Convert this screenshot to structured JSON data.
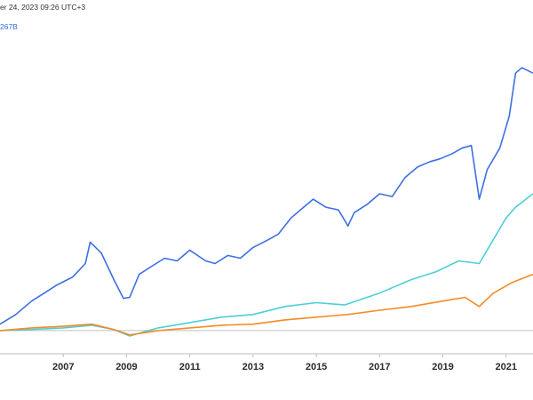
{
  "header": {
    "timestamp": "er 24, 2023 09:26 UTC+3",
    "code": "267B"
  },
  "colors": {
    "blue": "#3d6fe3",
    "cyan": "#4ccfd6",
    "orange": "#f58a25",
    "baseline": "#bfbfbf",
    "axis": "#bdbdbd",
    "tick_text": "#2b2b2b"
  },
  "chart_data": {
    "type": "line",
    "title": "",
    "xlabel": "",
    "ylabel": "",
    "x_ticks": [
      "2007",
      "2009",
      "2011",
      "2013",
      "2015",
      "2017",
      "2019",
      "2021"
    ],
    "xlim": [
      2005.0,
      2021.85
    ],
    "ylim": [
      -0.2,
      5.5
    ],
    "baseline": 0,
    "grid": false,
    "legend": "none",
    "series": [
      {
        "color_key": "blue",
        "points": [
          [
            2005.0,
            0.12
          ],
          [
            2005.5,
            0.3
          ],
          [
            2006.0,
            0.55
          ],
          [
            2006.4,
            0.7
          ],
          [
            2006.8,
            0.85
          ],
          [
            2007.3,
            1.0
          ],
          [
            2007.7,
            1.25
          ],
          [
            2007.85,
            1.65
          ],
          [
            2008.2,
            1.45
          ],
          [
            2008.6,
            0.95
          ],
          [
            2008.9,
            0.6
          ],
          [
            2009.1,
            0.62
          ],
          [
            2009.4,
            1.05
          ],
          [
            2009.8,
            1.2
          ],
          [
            2010.2,
            1.35
          ],
          [
            2010.6,
            1.3
          ],
          [
            2011.0,
            1.5
          ],
          [
            2011.5,
            1.3
          ],
          [
            2011.8,
            1.25
          ],
          [
            2012.2,
            1.4
          ],
          [
            2012.6,
            1.35
          ],
          [
            2013.0,
            1.55
          ],
          [
            2013.5,
            1.7
          ],
          [
            2013.8,
            1.8
          ],
          [
            2014.2,
            2.1
          ],
          [
            2014.6,
            2.3
          ],
          [
            2014.9,
            2.45
          ],
          [
            2015.3,
            2.3
          ],
          [
            2015.7,
            2.25
          ],
          [
            2016.0,
            1.95
          ],
          [
            2016.2,
            2.2
          ],
          [
            2016.6,
            2.35
          ],
          [
            2017.0,
            2.55
          ],
          [
            2017.4,
            2.5
          ],
          [
            2017.8,
            2.85
          ],
          [
            2018.2,
            3.05
          ],
          [
            2018.6,
            3.15
          ],
          [
            2018.9,
            3.2
          ],
          [
            2019.3,
            3.3
          ],
          [
            2019.6,
            3.4
          ],
          [
            2019.9,
            3.45
          ],
          [
            2020.15,
            2.45
          ],
          [
            2020.4,
            3.0
          ],
          [
            2020.8,
            3.4
          ],
          [
            2021.1,
            4.0
          ],
          [
            2021.3,
            4.8
          ],
          [
            2021.5,
            4.9
          ],
          [
            2021.85,
            4.8
          ]
        ]
      },
      {
        "color_key": "cyan",
        "points": [
          [
            2005.0,
            0.0
          ],
          [
            2006.0,
            0.02
          ],
          [
            2007.0,
            0.05
          ],
          [
            2007.9,
            0.1
          ],
          [
            2008.6,
            0.02
          ],
          [
            2009.1,
            -0.1
          ],
          [
            2010.0,
            0.05
          ],
          [
            2011.0,
            0.15
          ],
          [
            2012.0,
            0.25
          ],
          [
            2013.0,
            0.3
          ],
          [
            2014.0,
            0.45
          ],
          [
            2015.0,
            0.52
          ],
          [
            2015.9,
            0.48
          ],
          [
            2016.5,
            0.6
          ],
          [
            2017.0,
            0.7
          ],
          [
            2018.0,
            0.95
          ],
          [
            2018.8,
            1.1
          ],
          [
            2019.5,
            1.3
          ],
          [
            2020.15,
            1.25
          ],
          [
            2020.6,
            1.7
          ],
          [
            2021.0,
            2.1
          ],
          [
            2021.3,
            2.3
          ],
          [
            2021.85,
            2.55
          ]
        ]
      },
      {
        "color_key": "orange",
        "points": [
          [
            2005.0,
            0.0
          ],
          [
            2006.0,
            0.05
          ],
          [
            2007.0,
            0.08
          ],
          [
            2007.9,
            0.12
          ],
          [
            2008.6,
            0.02
          ],
          [
            2009.1,
            -0.08
          ],
          [
            2010.0,
            0.0
          ],
          [
            2011.0,
            0.05
          ],
          [
            2012.0,
            0.1
          ],
          [
            2013.0,
            0.12
          ],
          [
            2014.0,
            0.2
          ],
          [
            2015.0,
            0.25
          ],
          [
            2016.0,
            0.3
          ],
          [
            2017.0,
            0.38
          ],
          [
            2018.0,
            0.45
          ],
          [
            2019.0,
            0.55
          ],
          [
            2019.7,
            0.62
          ],
          [
            2020.15,
            0.45
          ],
          [
            2020.6,
            0.7
          ],
          [
            2021.2,
            0.9
          ],
          [
            2021.85,
            1.05
          ]
        ]
      }
    ]
  }
}
